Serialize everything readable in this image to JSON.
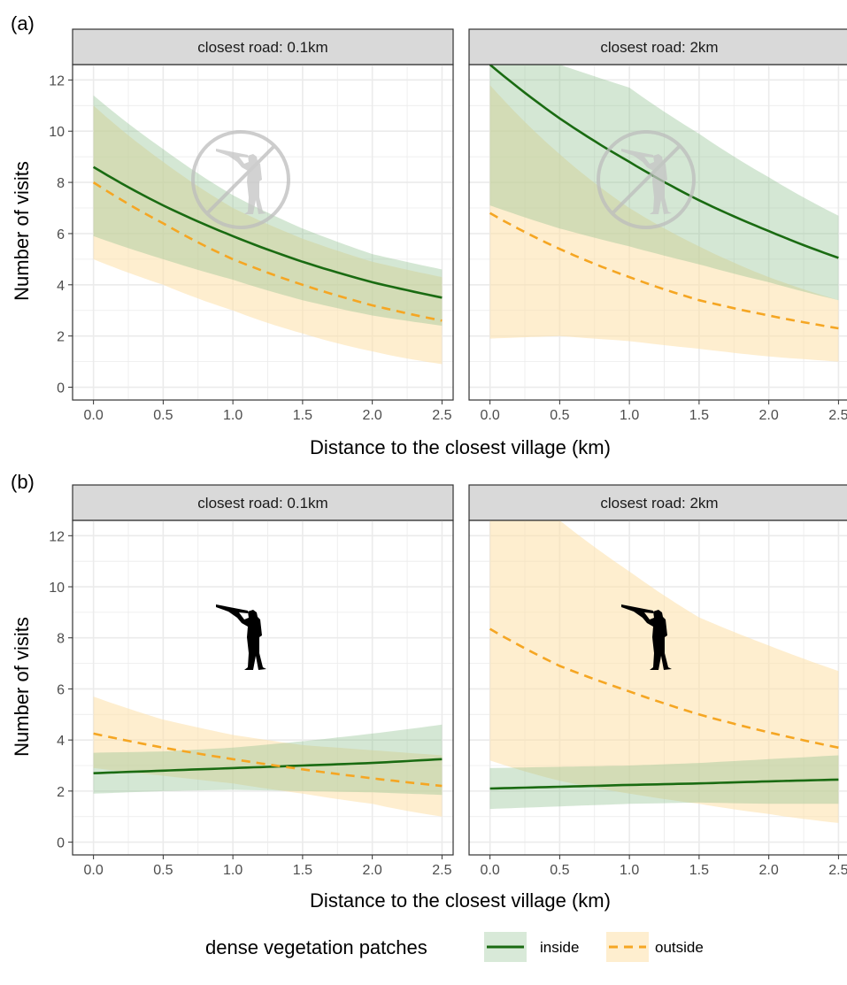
{
  "figure": {
    "panel_tags": [
      "(a)",
      "(b)"
    ],
    "xlabel": "Distance to the closest village (km)",
    "ylabel": "Number of visits",
    "legend": {
      "title": "dense vegetation patches",
      "items": [
        "inside",
        "outside"
      ]
    }
  },
  "colors": {
    "inside_line": "#1a6b12",
    "inside_band": "#8fbf8f",
    "outside_line": "#f5a623",
    "outside_band": "#fde0a8",
    "grid": "#ebebeb",
    "strip_bg": "#d9d9d9",
    "panel_border": "#333333"
  },
  "icons": [
    "hunter-crossed-out-icon",
    "hunter-icon"
  ],
  "chart_data": [
    {
      "type": "line",
      "row": "(a)",
      "strip": "closest road: 0.1km",
      "icon": "hunter-crossed-out-icon",
      "xlim": [
        -0.15,
        2.58
      ],
      "ylim": [
        -0.5,
        12.6
      ],
      "xticks": [
        0,
        0.5,
        1.0,
        1.5,
        2.0,
        2.5
      ],
      "xtick_labels": [
        "0.0",
        "0.5",
        "1.0",
        "1.5",
        "2.0",
        "2.5"
      ],
      "yticks": [
        0,
        2,
        4,
        6,
        8,
        10,
        12
      ],
      "ytick_labels": [
        "0",
        "2",
        "4",
        "6",
        "8",
        "10",
        "12"
      ],
      "x": [
        0,
        0.5,
        1.0,
        1.5,
        2.0,
        2.5
      ],
      "series": [
        {
          "name": "inside",
          "values": [
            8.6,
            7.1,
            5.9,
            4.9,
            4.1,
            3.5
          ],
          "lower": [
            5.9,
            5.0,
            4.2,
            3.4,
            2.8,
            2.4
          ],
          "upper": [
            11.4,
            9.3,
            7.5,
            6.2,
            5.2,
            4.6
          ]
        },
        {
          "name": "outside",
          "values": [
            8.0,
            6.4,
            5.0,
            4.0,
            3.2,
            2.6
          ],
          "lower": [
            5.0,
            4.0,
            3.0,
            2.1,
            1.4,
            0.9
          ],
          "upper": [
            11.0,
            8.8,
            7.0,
            5.8,
            4.9,
            4.3
          ]
        }
      ]
    },
    {
      "type": "line",
      "row": "(a)",
      "strip": "closest road: 2km",
      "icon": "hunter-crossed-out-icon",
      "xlim": [
        -0.15,
        2.58
      ],
      "ylim": [
        -0.5,
        12.6
      ],
      "xticks": [
        0,
        0.5,
        1.0,
        1.5,
        2.0,
        2.5
      ],
      "xtick_labels": [
        "0.0",
        "0.5",
        "1.0",
        "1.5",
        "2.0",
        "2.5"
      ],
      "yticks": [
        0,
        2,
        4,
        6,
        8,
        10,
        12
      ],
      "ytick_labels": [
        "0",
        "2",
        "4",
        "6",
        "8",
        "10",
        "12"
      ],
      "x": [
        0,
        0.5,
        1.0,
        1.5,
        2.0,
        2.5
      ],
      "series": [
        {
          "name": "inside",
          "values": [
            12.6,
            10.5,
            8.8,
            7.3,
            6.1,
            5.05
          ],
          "lower": [
            7.1,
            6.2,
            5.5,
            4.8,
            4.1,
            3.4
          ],
          "upper": [
            12.6,
            12.6,
            11.7,
            9.9,
            8.2,
            6.7
          ]
        },
        {
          "name": "outside",
          "values": [
            6.8,
            5.4,
            4.3,
            3.4,
            2.8,
            2.3
          ],
          "lower": [
            1.9,
            2.0,
            1.8,
            1.5,
            1.2,
            1.0
          ],
          "upper": [
            11.8,
            9.1,
            7.0,
            5.5,
            4.3,
            3.4
          ]
        }
      ]
    },
    {
      "type": "line",
      "row": "(b)",
      "strip": "closest road: 0.1km",
      "icon": "hunter-icon",
      "xlim": [
        -0.15,
        2.58
      ],
      "ylim": [
        -0.5,
        12.6
      ],
      "xticks": [
        0,
        0.5,
        1.0,
        1.5,
        2.0,
        2.5
      ],
      "xtick_labels": [
        "0.0",
        "0.5",
        "1.0",
        "1.5",
        "2.0",
        "2.5"
      ],
      "yticks": [
        0,
        2,
        4,
        6,
        8,
        10,
        12
      ],
      "ytick_labels": [
        "0",
        "2",
        "4",
        "6",
        "8",
        "10",
        "12"
      ],
      "x": [
        0,
        0.5,
        1.0,
        1.5,
        2.0,
        2.5
      ],
      "series": [
        {
          "name": "inside",
          "values": [
            2.7,
            2.8,
            2.9,
            3.0,
            3.1,
            3.25
          ],
          "lower": [
            1.9,
            2.0,
            2.05,
            2.0,
            1.95,
            1.85
          ],
          "upper": [
            3.5,
            3.55,
            3.7,
            3.95,
            4.25,
            4.6
          ]
        },
        {
          "name": "outside",
          "values": [
            4.25,
            3.7,
            3.25,
            2.85,
            2.5,
            2.2
          ],
          "lower": [
            2.9,
            2.6,
            2.3,
            1.9,
            1.5,
            1.0
          ],
          "upper": [
            5.7,
            4.8,
            4.2,
            3.8,
            3.6,
            3.4
          ]
        }
      ]
    },
    {
      "type": "line",
      "row": "(b)",
      "strip": "closest road: 2km",
      "icon": "hunter-icon",
      "xlim": [
        -0.15,
        2.58
      ],
      "ylim": [
        -0.5,
        12.6
      ],
      "xticks": [
        0,
        0.5,
        1.0,
        1.5,
        2.0,
        2.5
      ],
      "xtick_labels": [
        "0.0",
        "0.5",
        "1.0",
        "1.5",
        "2.0",
        "2.5"
      ],
      "yticks": [
        0,
        2,
        4,
        6,
        8,
        10,
        12
      ],
      "ytick_labels": [
        "0",
        "2",
        "4",
        "6",
        "8",
        "10",
        "12"
      ],
      "x": [
        0,
        0.5,
        1.0,
        1.5,
        2.0,
        2.5
      ],
      "series": [
        {
          "name": "inside",
          "values": [
            2.1,
            2.17,
            2.24,
            2.3,
            2.38,
            2.45
          ],
          "lower": [
            1.3,
            1.4,
            1.5,
            1.55,
            1.5,
            1.5
          ],
          "upper": [
            2.9,
            2.95,
            3.0,
            3.1,
            3.25,
            3.4
          ]
        },
        {
          "name": "outside",
          "values": [
            8.35,
            6.9,
            5.9,
            5.0,
            4.3,
            3.7
          ],
          "lower": [
            3.2,
            2.4,
            1.9,
            1.5,
            1.1,
            0.75
          ],
          "upper": [
            12.6,
            12.6,
            10.6,
            8.8,
            7.7,
            6.7
          ]
        }
      ]
    }
  ]
}
